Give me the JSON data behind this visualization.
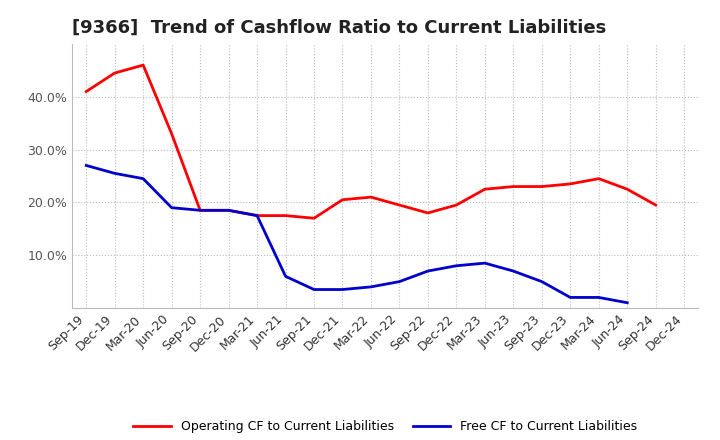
{
  "title": "[9366]  Trend of Cashflow Ratio to Current Liabilities",
  "x_labels": [
    "Sep-19",
    "Dec-19",
    "Mar-20",
    "Jun-20",
    "Sep-20",
    "Dec-20",
    "Mar-21",
    "Jun-21",
    "Sep-21",
    "Dec-21",
    "Mar-22",
    "Jun-22",
    "Sep-22",
    "Dec-22",
    "Mar-23",
    "Jun-23",
    "Sep-23",
    "Dec-23",
    "Mar-24",
    "Jun-24",
    "Sep-24",
    "Dec-24"
  ],
  "operating_cf": [
    0.41,
    0.445,
    0.46,
    0.33,
    0.185,
    0.185,
    0.175,
    0.175,
    0.17,
    0.205,
    0.21,
    0.195,
    0.18,
    0.195,
    0.225,
    0.23,
    0.23,
    0.235,
    0.245,
    0.225,
    0.195,
    null
  ],
  "free_cf": [
    0.27,
    0.255,
    0.245,
    0.19,
    0.185,
    0.185,
    0.175,
    0.06,
    0.035,
    0.035,
    0.04,
    0.05,
    0.07,
    0.08,
    0.085,
    0.07,
    0.05,
    0.02,
    0.02,
    0.01,
    null,
    null
  ],
  "operating_color": "#FF0000",
  "free_color": "#0000CD",
  "background_color": "#FFFFFF",
  "plot_bg_color": "#FFFFFF",
  "grid_color": "#BBBBBB",
  "ylim": [
    0.0,
    0.5
  ],
  "yticks": [
    0.1,
    0.2,
    0.3,
    0.4
  ],
  "title_fontsize": 13,
  "tick_fontsize": 9,
  "legend_fontsize": 9,
  "line_width": 2.0,
  "legend_labels": [
    "Operating CF to Current Liabilities",
    "Free CF to Current Liabilities"
  ]
}
